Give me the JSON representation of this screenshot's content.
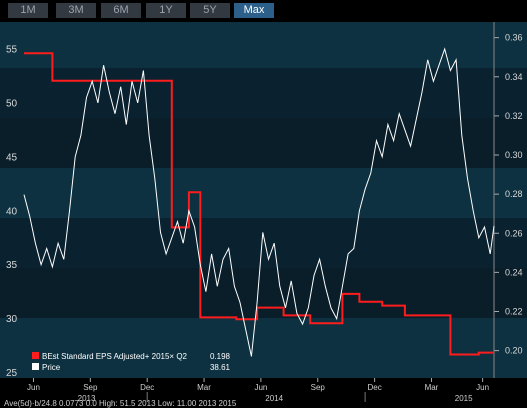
{
  "toolbar": {
    "tabs": [
      {
        "label": "1M",
        "active": false
      },
      {
        "label": "3M",
        "active": false
      },
      {
        "label": "6M",
        "active": false
      },
      {
        "label": "1Y",
        "active": false
      },
      {
        "label": "5Y",
        "active": false
      },
      {
        "label": "Max",
        "active": true
      }
    ]
  },
  "colors": {
    "background_bands": [
      "#0d3140",
      "#0a2230",
      "#0a1e2a"
    ],
    "eps_line": "#ff1c1c",
    "price_line": "#ffffff",
    "accent_tab": "#2c5f8a"
  },
  "chart_data": {
    "type": "line",
    "x_tick_labels": [
      "Jun",
      "Sep",
      "Dec",
      "Mar",
      "Jun",
      "Sep",
      "Dec",
      "Mar",
      "Jun"
    ],
    "year_labels": [
      "2013",
      "2014",
      "2015"
    ],
    "left_axis": {
      "ticks": [
        "55",
        "50",
        "45",
        "40",
        "35",
        "30",
        "25"
      ],
      "range": [
        24.5,
        57.5
      ]
    },
    "right_axis": {
      "ticks": [
        "0.36",
        "0.34",
        "0.32",
        "0.30",
        "0.28",
        "0.26",
        "0.24",
        "0.22",
        "0.20"
      ],
      "range": [
        0.186,
        0.368
      ]
    },
    "legend": [
      {
        "label": "BEst Standard EPS Adjusted+ 2015× Q2",
        "value": "0.198",
        "color": "#ff1c1c"
      },
      {
        "label": "Price",
        "value": "38.61",
        "color": "#ffffff"
      }
    ],
    "series": [
      {
        "name": "BEst Standard EPS Adjusted+ 2015× Q2",
        "axis": "right",
        "step": true,
        "points": [
          [
            0.0,
            0.352
          ],
          [
            1.5,
            0.352
          ],
          [
            1.5,
            0.338
          ],
          [
            7.8,
            0.338
          ],
          [
            7.8,
            0.263
          ],
          [
            8.7,
            0.263
          ],
          [
            8.7,
            0.281
          ],
          [
            9.3,
            0.281
          ],
          [
            9.3,
            0.217
          ],
          [
            11.2,
            0.217
          ],
          [
            11.2,
            0.216
          ],
          [
            12.3,
            0.216
          ],
          [
            12.3,
            0.222
          ],
          [
            13.7,
            0.222
          ],
          [
            13.7,
            0.218
          ],
          [
            15.1,
            0.218
          ],
          [
            15.1,
            0.214
          ],
          [
            16.8,
            0.214
          ],
          [
            16.8,
            0.229
          ],
          [
            17.7,
            0.229
          ],
          [
            17.7,
            0.225
          ],
          [
            18.9,
            0.225
          ],
          [
            18.9,
            0.223
          ],
          [
            20.1,
            0.223
          ],
          [
            20.1,
            0.218
          ],
          [
            22.5,
            0.218
          ],
          [
            22.5,
            0.198
          ],
          [
            24.0,
            0.198
          ],
          [
            24.0,
            0.199
          ],
          [
            24.8,
            0.199
          ]
        ]
      },
      {
        "name": "Price",
        "axis": "left",
        "step": false,
        "points": [
          [
            0.0,
            41.5
          ],
          [
            0.3,
            39.5
          ],
          [
            0.6,
            37.0
          ],
          [
            0.9,
            35.0
          ],
          [
            1.2,
            36.5
          ],
          [
            1.5,
            34.8
          ],
          [
            1.8,
            37.0
          ],
          [
            2.1,
            35.5
          ],
          [
            2.4,
            40.0
          ],
          [
            2.7,
            45.0
          ],
          [
            3.0,
            47.0
          ],
          [
            3.3,
            50.5
          ],
          [
            3.6,
            52.0
          ],
          [
            3.9,
            50.0
          ],
          [
            4.2,
            53.5
          ],
          [
            4.5,
            51.0
          ],
          [
            4.8,
            49.0
          ],
          [
            5.1,
            51.5
          ],
          [
            5.4,
            48.0
          ],
          [
            5.7,
            52.0
          ],
          [
            6.0,
            50.0
          ],
          [
            6.3,
            53.0
          ],
          [
            6.6,
            47.0
          ],
          [
            6.9,
            43.0
          ],
          [
            7.2,
            38.0
          ],
          [
            7.5,
            36.0
          ],
          [
            7.8,
            37.5
          ],
          [
            8.1,
            39.0
          ],
          [
            8.4,
            37.0
          ],
          [
            8.7,
            40.0
          ],
          [
            9.0,
            38.5
          ],
          [
            9.3,
            35.0
          ],
          [
            9.6,
            32.5
          ],
          [
            9.9,
            36.0
          ],
          [
            10.2,
            33.0
          ],
          [
            10.5,
            35.5
          ],
          [
            10.8,
            36.5
          ],
          [
            11.1,
            33.0
          ],
          [
            11.4,
            31.5
          ],
          [
            11.7,
            29.0
          ],
          [
            12.0,
            26.5
          ],
          [
            12.3,
            31.5
          ],
          [
            12.6,
            38.0
          ],
          [
            12.9,
            35.5
          ],
          [
            13.2,
            37.0
          ],
          [
            13.5,
            33.0
          ],
          [
            13.8,
            31.0
          ],
          [
            14.1,
            33.5
          ],
          [
            14.4,
            30.5
          ],
          [
            14.7,
            29.5
          ],
          [
            15.0,
            31.0
          ],
          [
            15.3,
            34.0
          ],
          [
            15.6,
            35.5
          ],
          [
            15.9,
            33.0
          ],
          [
            16.2,
            31.0
          ],
          [
            16.5,
            30.0
          ],
          [
            16.8,
            33.0
          ],
          [
            17.1,
            36.0
          ],
          [
            17.4,
            36.5
          ],
          [
            17.7,
            40.0
          ],
          [
            18.0,
            42.0
          ],
          [
            18.3,
            43.5
          ],
          [
            18.6,
            46.5
          ],
          [
            18.9,
            45.0
          ],
          [
            19.2,
            48.0
          ],
          [
            19.5,
            46.5
          ],
          [
            19.8,
            49.0
          ],
          [
            20.1,
            47.5
          ],
          [
            20.4,
            46.0
          ],
          [
            20.7,
            48.5
          ],
          [
            21.0,
            51.0
          ],
          [
            21.3,
            54.0
          ],
          [
            21.6,
            52.0
          ],
          [
            21.9,
            53.5
          ],
          [
            22.2,
            55.0
          ],
          [
            22.5,
            53.0
          ],
          [
            22.8,
            54.0
          ],
          [
            23.1,
            47.0
          ],
          [
            23.4,
            43.0
          ],
          [
            23.7,
            40.0
          ],
          [
            24.0,
            37.5
          ],
          [
            24.3,
            38.5
          ],
          [
            24.6,
            36.0
          ],
          [
            24.8,
            38.61
          ]
        ]
      }
    ]
  },
  "footer": {
    "text": "Ave(5d)·b/24.8  0.0773  0.0  High:  51.5  2013  Low:  11.00  2013  2015"
  }
}
